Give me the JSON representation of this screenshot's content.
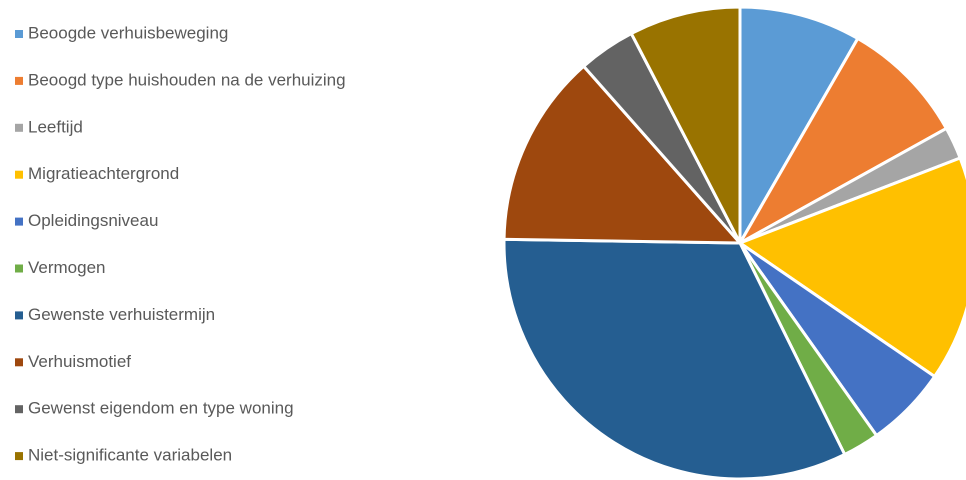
{
  "chart_data": {
    "type": "pie",
    "categories": [
      "Beoogde verhuisbeweging",
      "Beoogd type huishouden na de verhuizing",
      "Leeftijd",
      "Migratieachtergrond",
      "Opleidingsniveau",
      "Vermogen",
      "Gewenste verhuistermijn",
      "Verhuismotief",
      "Gewenst eigendom en type woning",
      "Niet-significante variabelen"
    ],
    "values": [
      8.3,
      8.6,
      2.2,
      15.4,
      5.6,
      2.5,
      32.5,
      13.2,
      3.9,
      7.6
    ],
    "colors": [
      "#5b9bd5",
      "#ed7d31",
      "#a5a5a5",
      "#ffc000",
      "#4472c4",
      "#70ad47",
      "#255e91",
      "#9e480e",
      "#636363",
      "#997300"
    ],
    "legend": "left"
  }
}
